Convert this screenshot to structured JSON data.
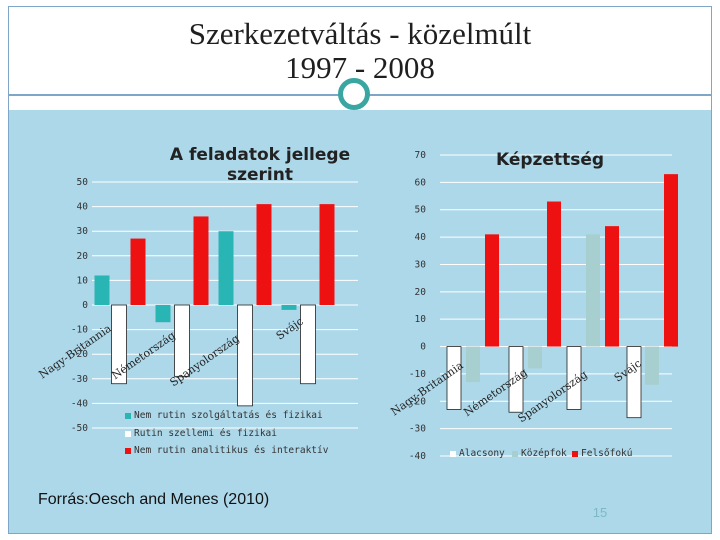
{
  "slide": {
    "title_line1": "Szerkezetváltás  - közelmúlt",
    "title_line2": "1997 - 2008",
    "source": "Forrás:Oesch and Menes (2010)",
    "page_number": "15"
  },
  "chart_data": [
    {
      "type": "bar",
      "title": "A feladatok jellege szerint",
      "categories": [
        "Nagy-Britannia",
        "Németország",
        "Spanyolország",
        "Svájc"
      ],
      "category_display": [
        "Nagy-Britannia",
        "Németország",
        "Spanyolország",
        "Svájc"
      ],
      "series": [
        {
          "name": "Nem rutin szolgáltatás és fizikai",
          "color": "#2ab5b5",
          "values": [
            12,
            -7,
            30,
            -2
          ]
        },
        {
          "name": "Rutin szellemi és fizikai",
          "color": "#ffffff",
          "values": [
            -32,
            -29,
            -41,
            -32
          ]
        },
        {
          "name": "Nem rutin analitikus és interaktív",
          "color": "#ee1111",
          "values": [
            27,
            36,
            41,
            41
          ]
        }
      ],
      "y_ticks": [
        "50",
        "40",
        "30",
        "20",
        "10",
        "0",
        "-10",
        "-20",
        "-30",
        "-40",
        "-50"
      ],
      "ylim": [
        -50,
        50
      ],
      "grid": true,
      "legend_position": "bottom"
    },
    {
      "type": "bar",
      "title": "Képzettség",
      "categories": [
        "Nagy-Britannia",
        "Németország",
        "Spanyolország",
        "Svájc"
      ],
      "category_display": [
        "Nagy-Britannia",
        "Németország",
        "Spanyolország",
        "Svájc"
      ],
      "series": [
        {
          "name": "Alacsony",
          "color": "#ffffff",
          "values": [
            -23,
            -24,
            -23,
            -26
          ]
        },
        {
          "name": "Középfok",
          "color": "#a8cfd0",
          "values": [
            -13,
            -8,
            41,
            -14
          ]
        },
        {
          "name": "Felsőfokú",
          "color": "#ee1111",
          "values": [
            41,
            53,
            44,
            63
          ]
        }
      ],
      "y_ticks": [
        "70",
        "60",
        "50",
        "40",
        "30",
        "20",
        "10",
        "0",
        "-10",
        "-20",
        "-30",
        "-40"
      ],
      "ylim": [
        -40,
        70
      ],
      "grid": true,
      "legend_position": "bottom"
    }
  ]
}
